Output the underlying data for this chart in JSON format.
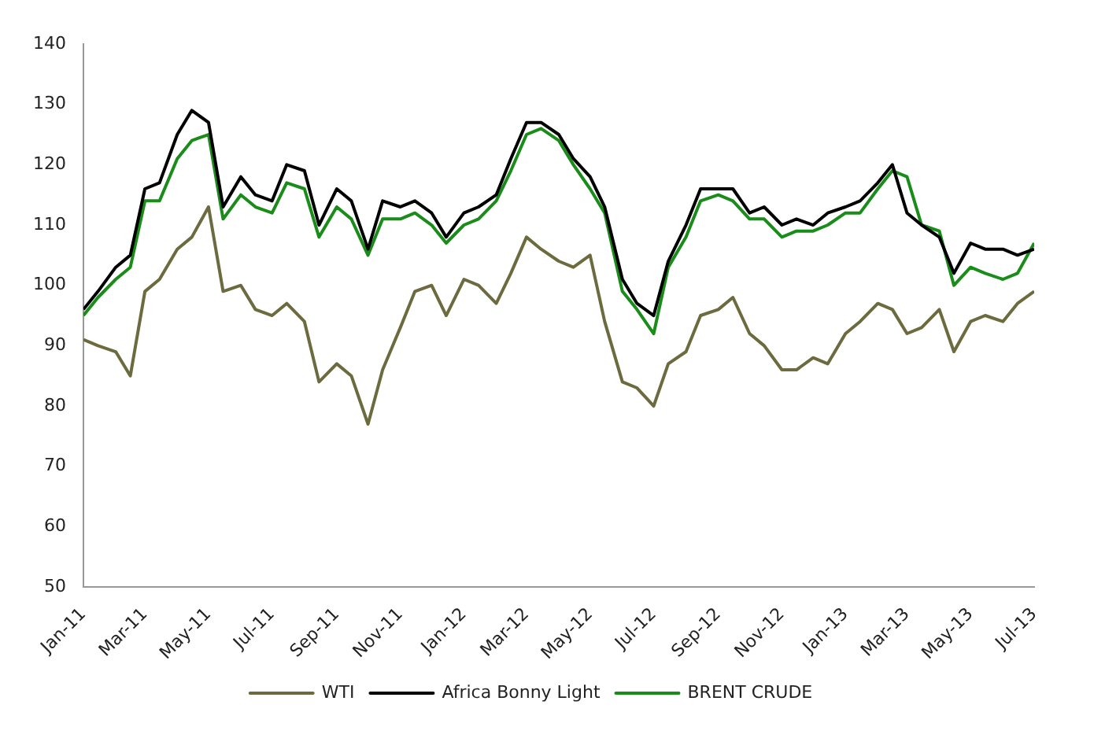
{
  "chart_data": {
    "type": "line",
    "x": [
      "2011-01-01",
      "2011-01-15",
      "2011-02-01",
      "2011-02-15",
      "2011-03-01",
      "2011-03-15",
      "2011-04-01",
      "2011-04-15",
      "2011-05-01",
      "2011-05-15",
      "2011-06-01",
      "2011-06-15",
      "2011-07-01",
      "2011-07-15",
      "2011-08-01",
      "2011-08-15",
      "2011-09-01",
      "2011-09-15",
      "2011-10-01",
      "2011-10-15",
      "2011-11-01",
      "2011-11-15",
      "2011-12-01",
      "2011-12-15",
      "2012-01-01",
      "2012-01-15",
      "2012-02-01",
      "2012-02-15",
      "2012-03-01",
      "2012-03-15",
      "2012-04-01",
      "2012-04-15",
      "2012-05-01",
      "2012-05-15",
      "2012-06-01",
      "2012-06-15",
      "2012-07-01",
      "2012-07-15",
      "2012-08-01",
      "2012-08-15",
      "2012-09-01",
      "2012-09-15",
      "2012-10-01",
      "2012-10-15",
      "2012-11-01",
      "2012-11-15",
      "2012-12-01",
      "2012-12-15",
      "2013-01-01",
      "2013-01-15",
      "2013-02-01",
      "2013-02-15",
      "2013-03-01",
      "2013-03-15",
      "2013-04-01",
      "2013-04-15",
      "2013-05-01",
      "2013-05-15",
      "2013-06-01",
      "2013-06-15",
      "2013-07-01"
    ],
    "series": [
      {
        "name": "WTI",
        "color": "#6b6b3f",
        "values": [
          91,
          90,
          89,
          85,
          99,
          101,
          106,
          108,
          113,
          99,
          100,
          96,
          95,
          97,
          94,
          84,
          87,
          85,
          77,
          86,
          93,
          99,
          100,
          95,
          101,
          100,
          97,
          102,
          108,
          106,
          104,
          103,
          105,
          94,
          84,
          83,
          80,
          87,
          89,
          95,
          96,
          98,
          92,
          90,
          86,
          86,
          88,
          87,
          92,
          94,
          97,
          96,
          92,
          93,
          96,
          89,
          94,
          95,
          94,
          97,
          99
        ]
      },
      {
        "name": "Africa Bonny Light",
        "color": "#000000",
        "values": [
          96,
          99,
          103,
          105,
          116,
          117,
          125,
          129,
          127,
          113,
          118,
          115,
          114,
          120,
          119,
          110,
          116,
          114,
          106,
          114,
          113,
          114,
          112,
          108,
          112,
          113,
          115,
          121,
          127,
          127,
          125,
          121,
          118,
          113,
          101,
          97,
          95,
          104,
          110,
          116,
          116,
          116,
          112,
          113,
          110,
          111,
          110,
          112,
          113,
          114,
          117,
          120,
          112,
          110,
          108,
          102,
          107,
          106,
          106,
          105,
          106
        ]
      },
      {
        "name": "BRENT CRUDE",
        "color": "#1a8c1a",
        "values": [
          95,
          98,
          101,
          103,
          114,
          114,
          121,
          124,
          125,
          111,
          115,
          113,
          112,
          117,
          116,
          108,
          113,
          111,
          105,
          111,
          111,
          112,
          110,
          107,
          110,
          111,
          114,
          119,
          125,
          126,
          124,
          120,
          116,
          112,
          99,
          96,
          92,
          103,
          108,
          114,
          115,
          114,
          111,
          111,
          108,
          109,
          109,
          110,
          112,
          112,
          116,
          119,
          118,
          110,
          109,
          100,
          103,
          102,
          101,
          102,
          107
        ]
      }
    ],
    "xlim": [
      "2011-01-01",
      "2013-07-01"
    ],
    "xticks": [
      {
        "value": "2011-01",
        "label": "Jan-11"
      },
      {
        "value": "2011-03",
        "label": "Mar-11"
      },
      {
        "value": "2011-05",
        "label": "May-11"
      },
      {
        "value": "2011-07",
        "label": "Jul-11"
      },
      {
        "value": "2011-09",
        "label": "Sep-11"
      },
      {
        "value": "2011-11",
        "label": "Nov-11"
      },
      {
        "value": "2012-01",
        "label": "Jan-12"
      },
      {
        "value": "2012-03",
        "label": "Mar-12"
      },
      {
        "value": "2012-05",
        "label": "May-12"
      },
      {
        "value": "2012-07",
        "label": "Jul-12"
      },
      {
        "value": "2012-09",
        "label": "Sep-12"
      },
      {
        "value": "2012-11",
        "label": "Nov-12"
      },
      {
        "value": "2013-01",
        "label": "Jan-13"
      },
      {
        "value": "2013-03",
        "label": "Mar-13"
      },
      {
        "value": "2013-05",
        "label": "May-13"
      },
      {
        "value": "2013-07",
        "label": "Jul-13"
      }
    ],
    "ylim": [
      50,
      140
    ],
    "yticks": [
      50,
      60,
      70,
      80,
      90,
      100,
      110,
      120,
      130,
      140
    ],
    "grid": false,
    "legend": "bottom",
    "marker": "none",
    "line_style": "solid"
  }
}
